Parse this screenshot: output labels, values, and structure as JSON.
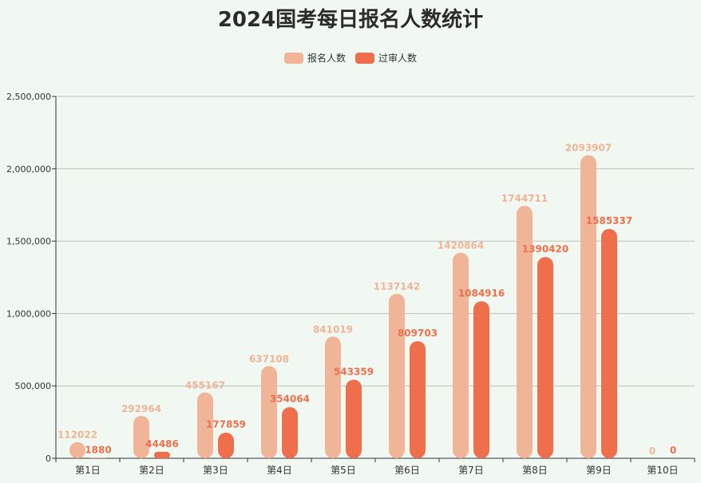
{
  "chart_data": {
    "type": "bar",
    "title": "2024国考每日报名人数统计",
    "categories": [
      "第1日",
      "第2日",
      "第3日",
      "第4日",
      "第5日",
      "第6日",
      "第7日",
      "第8日",
      "第9日",
      "第10日"
    ],
    "series": [
      {
        "name": "报名人数",
        "color": "#f0b498",
        "values": [
          112022,
          292964,
          455167,
          637108,
          841019,
          1137142,
          1420864,
          1744711,
          2093907,
          0
        ]
      },
      {
        "name": "过审人数",
        "color": "#ef6f4d",
        "values": [
          1880,
          44486,
          177859,
          354064,
          543359,
          809703,
          1084916,
          1390420,
          1585337,
          0
        ]
      }
    ],
    "ylim": [
      0,
      2500000
    ],
    "yticks": [
      "0",
      "500,000",
      "1,000,000",
      "1,500,000",
      "2,000,000",
      "2,500,000"
    ],
    "grid": true,
    "legend": "top-center",
    "xlabel": "",
    "ylabel": ""
  }
}
